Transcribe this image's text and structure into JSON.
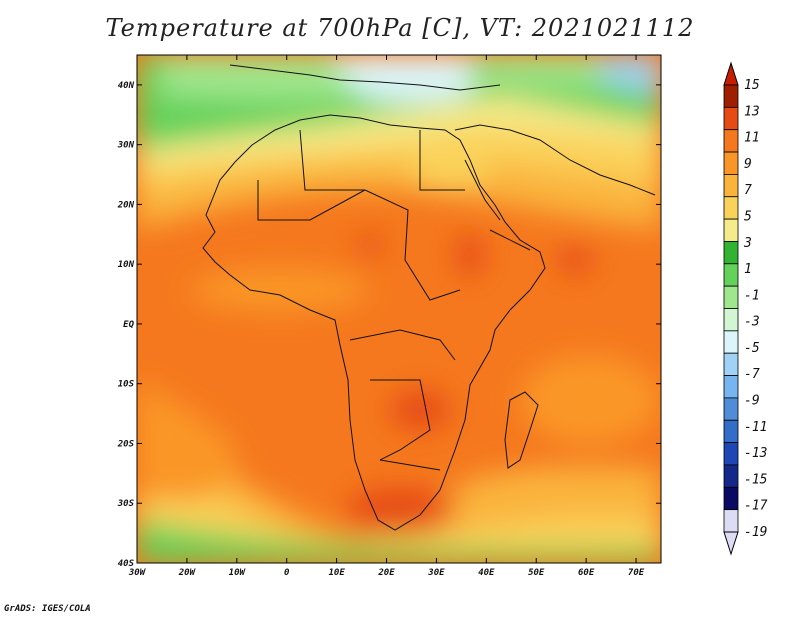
{
  "title": "Temperature at 700hPa [C], VT: 2021021112",
  "credit": "GrADS: IGES/COLA",
  "map": {
    "projection": "lat-lon",
    "lon_range": [
      -30,
      75
    ],
    "lat_range": [
      -40,
      45
    ],
    "variable": "Temperature",
    "level": "700hPa",
    "units": "C",
    "valid_time": "2021021112",
    "lon_ticks": [
      "30W",
      "20W",
      "10W",
      "0",
      "10E",
      "20E",
      "30E",
      "40E",
      "50E",
      "60E",
      "70E"
    ],
    "lat_ticks": [
      "40N",
      "30N",
      "20N",
      "10N",
      "EQ",
      "10S",
      "20S",
      "30S",
      "40S"
    ]
  },
  "colorbar": {
    "levels": [
      "15",
      "13",
      "11",
      "9",
      "7",
      "5",
      "3",
      "1",
      "-1",
      "-3",
      "-5",
      "-7",
      "-9",
      "-11",
      "-13",
      "-15",
      "-17",
      "-19"
    ],
    "colors": [
      "#a01e00",
      "#e64b14",
      "#f5781e",
      "#fa9628",
      "#fab43c",
      "#fad25a",
      "#f5eb8c",
      "#32b432",
      "#64d25a",
      "#a0e68c",
      "#d2f5d2",
      "#dcf5fa",
      "#a0d2f5",
      "#78b4f0",
      "#508cd7",
      "#326ec8",
      "#1e46b4",
      "#14288c",
      "#0a0a64",
      "#dcdcf5"
    ],
    "max_arrow_color": "#c81e00",
    "min_arrow_color": "#dcdcf5"
  }
}
